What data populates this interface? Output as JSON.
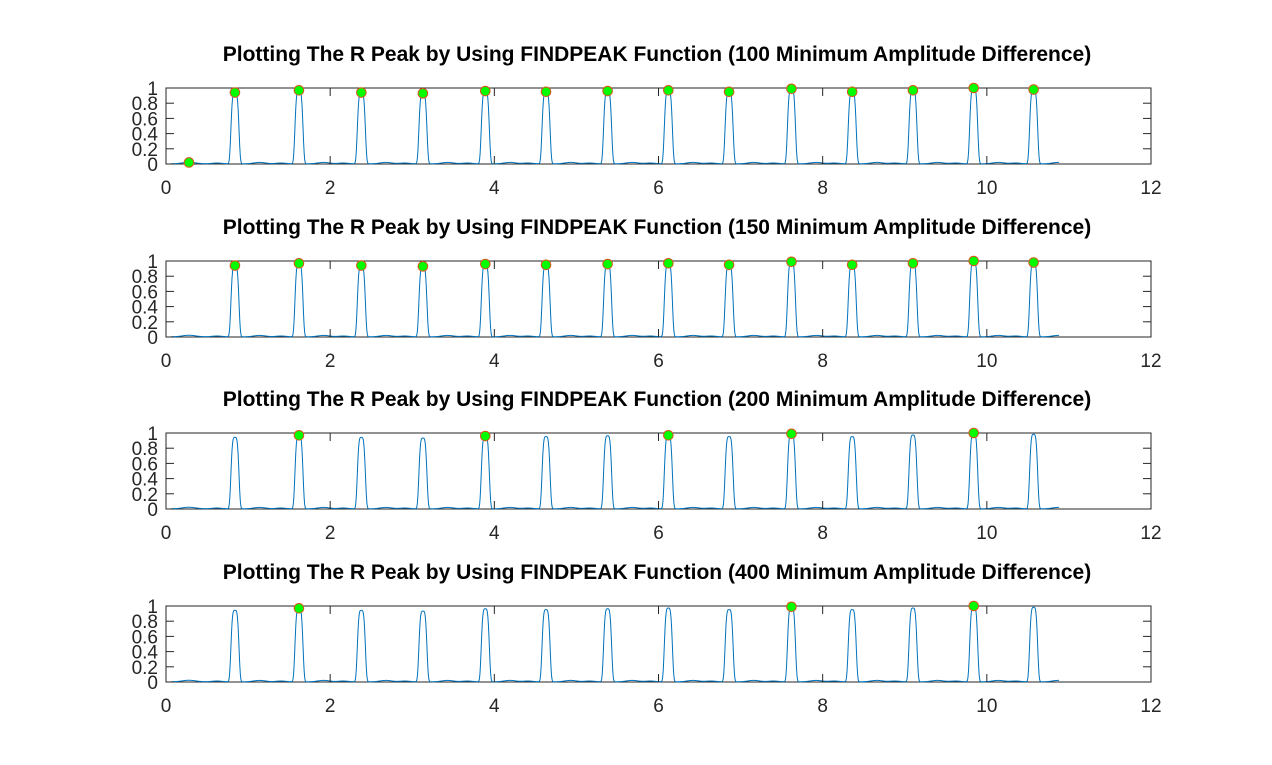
{
  "figure": {
    "background": "#ffffff",
    "signal_color": "#0072bd",
    "marker_fill": "#00ff00",
    "marker_edge": "#d95319"
  },
  "chart_data": [
    {
      "type": "line",
      "title": "Plotting The R Peak by Using FINDPEAK Function (100 Minimum Amplitude Difference)",
      "xlim": [
        0,
        12
      ],
      "ylim": [
        0,
        1
      ],
      "xticks": [
        0,
        2,
        4,
        6,
        8,
        10,
        12
      ],
      "yticks": [
        0,
        0.2,
        0.4,
        0.6,
        0.8,
        1
      ],
      "ytick_labels": [
        "0",
        "0.2",
        "0.4",
        "0.6",
        "0.8",
        "1"
      ],
      "grid": false,
      "peaks": {
        "x": [
          0.28,
          0.84,
          1.62,
          2.38,
          3.13,
          3.89,
          4.63,
          5.38,
          6.12,
          6.86,
          7.62,
          8.36,
          9.1,
          9.84,
          10.57
        ],
        "y": [
          0.02,
          0.94,
          0.97,
          0.94,
          0.93,
          0.96,
          0.95,
          0.96,
          0.97,
          0.95,
          0.99,
          0.95,
          0.97,
          1.0,
          0.98
        ]
      }
    },
    {
      "type": "line",
      "title": "Plotting The R Peak by Using FINDPEAK Function (150 Minimum Amplitude Difference)",
      "xlim": [
        0,
        12
      ],
      "ylim": [
        0,
        1
      ],
      "xticks": [
        0,
        2,
        4,
        6,
        8,
        10,
        12
      ],
      "yticks": [
        0,
        0.2,
        0.4,
        0.6,
        0.8,
        1
      ],
      "ytick_labels": [
        "0",
        "0.2",
        "0.4",
        "0.6",
        "0.8",
        "1"
      ],
      "grid": false,
      "peaks": {
        "x": [
          0.84,
          1.62,
          2.38,
          3.13,
          3.89,
          4.63,
          5.38,
          6.12,
          6.86,
          7.62,
          8.36,
          9.1,
          9.84,
          10.57
        ],
        "y": [
          0.94,
          0.97,
          0.94,
          0.93,
          0.96,
          0.95,
          0.96,
          0.97,
          0.95,
          0.99,
          0.95,
          0.97,
          1.0,
          0.98
        ]
      }
    },
    {
      "type": "line",
      "title": "Plotting The R Peak by Using FINDPEAK Function (200 Minimum Amplitude Difference)",
      "xlim": [
        0,
        12
      ],
      "ylim": [
        0,
        1
      ],
      "xticks": [
        0,
        2,
        4,
        6,
        8,
        10,
        12
      ],
      "yticks": [
        0,
        0.2,
        0.4,
        0.6,
        0.8,
        1
      ],
      "ytick_labels": [
        "0",
        "0.2",
        "0.4",
        "0.6",
        "0.8",
        "1"
      ],
      "grid": false,
      "peaks": {
        "x": [
          1.62,
          3.89,
          6.12,
          7.62,
          9.84
        ],
        "y": [
          0.97,
          0.96,
          0.97,
          0.99,
          1.0
        ]
      }
    },
    {
      "type": "line",
      "title": "Plotting The R Peak by Using FINDPEAK Function (400 Minimum Amplitude Difference)",
      "xlim": [
        0,
        12
      ],
      "ylim": [
        0,
        1
      ],
      "xticks": [
        0,
        2,
        4,
        6,
        8,
        10,
        12
      ],
      "yticks": [
        0,
        0.2,
        0.4,
        0.6,
        0.8,
        1
      ],
      "ytick_labels": [
        "0",
        "0.2",
        "0.4",
        "0.6",
        "0.8",
        "1"
      ],
      "grid": false,
      "peaks": {
        "x": [
          1.62,
          7.62,
          9.84
        ],
        "y": [
          0.97,
          0.99,
          1.0
        ]
      }
    }
  ]
}
